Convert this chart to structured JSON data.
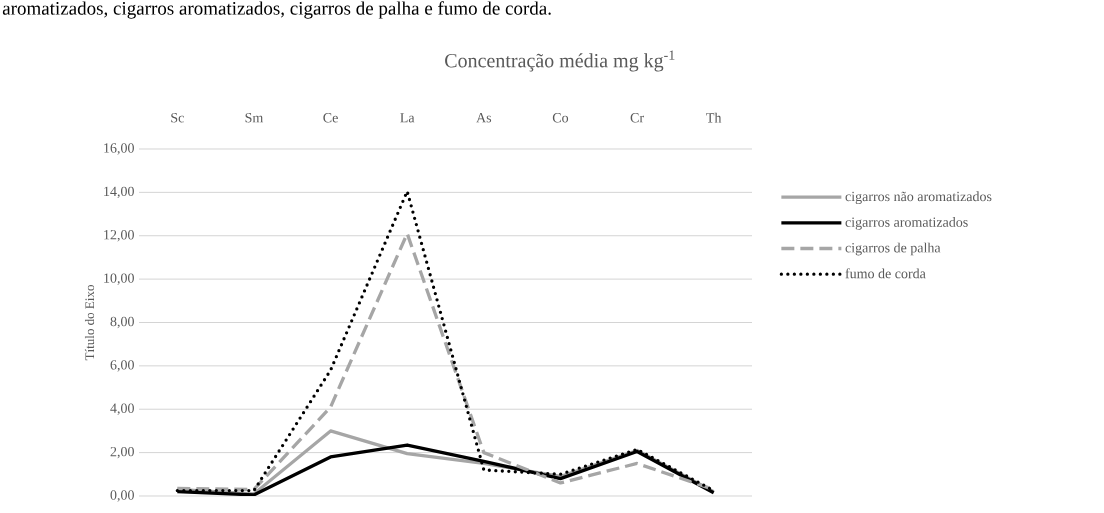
{
  "chart_data": {
    "type": "line",
    "title": "Concentração média mg kg$^{-1}$",
    "ylabel": "Título do Eixo",
    "annotations": [
      "aromatizados, cigarros aromatizados, cigarros de palha e fumo de corda."
    ],
    "categories": [
      "Sc",
      "Sm",
      "Ce",
      "La",
      "As",
      "Co",
      "Cr",
      "Th"
    ],
    "series": [
      {
        "name": "cigarros não aromatizados",
        "color": "#a6a6a6",
        "line_style": "solid",
        "values": [
          0.3,
          0.1,
          3.0,
          1.95,
          1.5,
          0.9,
          2.1,
          0.2
        ]
      },
      {
        "name": "cigarros aromatizados",
        "color": "#000000",
        "line_style": "solid",
        "values": [
          0.2,
          0.05,
          1.8,
          2.35,
          1.6,
          0.8,
          2.05,
          0.15
        ]
      },
      {
        "name": "cigarros de palha",
        "color": "#a6a6a6",
        "line_style": "dashed",
        "values": [
          0.35,
          0.3,
          4.1,
          12.1,
          2.0,
          0.6,
          1.5,
          0.3
        ]
      },
      {
        "name": "fumo de corda",
        "color": "#000000",
        "line_style": "dotted",
        "values": [
          0.25,
          0.25,
          5.8,
          14.05,
          1.2,
          1.0,
          2.15,
          0.25
        ]
      }
    ],
    "ylim": [
      0,
      16
    ],
    "yticks": [
      {
        "value": 0,
        "label": "0,00"
      },
      {
        "value": 2,
        "label": "2,00"
      },
      {
        "value": 4,
        "label": "4,00"
      },
      {
        "value": 6,
        "label": "6,00"
      },
      {
        "value": 8,
        "label": "8,00"
      },
      {
        "value": 10,
        "label": "10,00"
      },
      {
        "value": 12,
        "label": "12,00"
      },
      {
        "value": 14,
        "label": "14,00"
      },
      {
        "value": 16,
        "label": "16,00"
      }
    ],
    "grid": "y",
    "legend": "right"
  }
}
